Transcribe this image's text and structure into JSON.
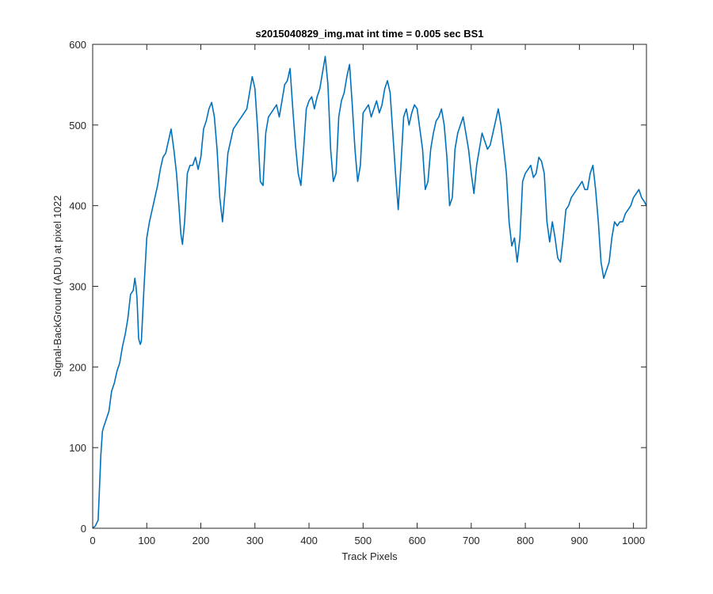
{
  "chart_data": {
    "type": "line",
    "title": "s2015040829_img.mat int time = 0.005 sec   BS1",
    "xlabel": "Track Pixels",
    "ylabel": "Signal-BackGround (ADU) at pixel 1022",
    "xlim": [
      0,
      1024
    ],
    "ylim": [
      0,
      600
    ],
    "xticks": [
      0,
      100,
      200,
      300,
      400,
      500,
      600,
      700,
      800,
      900,
      1000
    ],
    "yticks": [
      0,
      100,
      200,
      300,
      400,
      500,
      600
    ],
    "grid": false,
    "series_color": "#0072BD",
    "series": [
      {
        "x": [
          0,
          5,
          10,
          12,
          15,
          18,
          20,
          25,
          30,
          35,
          40,
          45,
          50,
          55,
          60,
          65,
          70,
          75,
          78,
          80,
          82,
          85,
          88,
          90,
          95,
          100,
          105,
          110,
          115,
          120,
          125,
          130,
          135,
          140,
          145,
          150,
          155,
          160,
          163,
          166,
          170,
          175,
          180,
          185,
          190,
          195,
          200,
          205,
          210,
          215,
          220,
          225,
          230,
          235,
          240,
          245,
          250,
          255,
          260,
          265,
          270,
          275,
          280,
          285,
          290,
          295,
          300,
          305,
          310,
          315,
          320,
          325,
          330,
          335,
          340,
          345,
          350,
          355,
          360,
          365,
          370,
          375,
          380,
          385,
          390,
          395,
          400,
          405,
          410,
          415,
          420,
          425,
          430,
          435,
          440,
          445,
          450,
          455,
          460,
          465,
          470,
          475,
          480,
          485,
          490,
          495,
          500,
          505,
          510,
          515,
          520,
          525,
          530,
          535,
          540,
          545,
          550,
          555,
          560,
          565,
          570,
          575,
          580,
          585,
          590,
          595,
          600,
          605,
          610,
          615,
          620,
          625,
          630,
          635,
          640,
          645,
          650,
          655,
          660,
          665,
          670,
          675,
          680,
          685,
          690,
          695,
          700,
          705,
          710,
          715,
          720,
          725,
          730,
          735,
          740,
          745,
          750,
          755,
          760,
          765,
          770,
          775,
          780,
          785,
          790,
          795,
          800,
          805,
          810,
          815,
          820,
          825,
          830,
          835,
          840,
          845,
          850,
          855,
          860,
          865,
          870,
          875,
          880,
          885,
          890,
          895,
          900,
          905,
          910,
          915,
          920,
          925,
          930,
          935,
          940,
          945,
          950,
          955,
          960,
          965,
          970,
          975,
          980,
          985,
          990,
          995,
          1000,
          1005,
          1010,
          1015,
          1020,
          1024
        ],
        "y": [
          0,
          3,
          10,
          40,
          90,
          120,
          125,
          135,
          145,
          170,
          180,
          195,
          205,
          225,
          240,
          260,
          290,
          295,
          310,
          300,
          285,
          235,
          228,
          232,
          300,
          360,
          380,
          395,
          410,
          425,
          445,
          460,
          465,
          480,
          495,
          470,
          440,
          395,
          365,
          352,
          380,
          440,
          450,
          450,
          460,
          445,
          460,
          495,
          505,
          520,
          528,
          510,
          470,
          410,
          380,
          420,
          465,
          480,
          495,
          500,
          505,
          510,
          515,
          520,
          540,
          560,
          545,
          495,
          430,
          425,
          490,
          510,
          515,
          520,
          525,
          510,
          530,
          550,
          555,
          570,
          520,
          475,
          440,
          425,
          470,
          520,
          530,
          535,
          520,
          535,
          545,
          565,
          585,
          550,
          470,
          430,
          440,
          510,
          530,
          540,
          560,
          575,
          525,
          470,
          430,
          450,
          515,
          520,
          525,
          510,
          520,
          530,
          515,
          525,
          545,
          555,
          540,
          490,
          440,
          395,
          450,
          510,
          520,
          500,
          515,
          525,
          520,
          495,
          470,
          420,
          430,
          470,
          490,
          505,
          510,
          520,
          500,
          460,
          400,
          410,
          470,
          490,
          500,
          510,
          490,
          470,
          440,
          415,
          450,
          470,
          490,
          480,
          470,
          475,
          490,
          505,
          520,
          500,
          470,
          440,
          380,
          350,
          360,
          330,
          360,
          430,
          440,
          445,
          450,
          435,
          440,
          460,
          455,
          440,
          380,
          355,
          380,
          360,
          335,
          330,
          360,
          395,
          400,
          410,
          415,
          420,
          425,
          430,
          420,
          420,
          440,
          450,
          420,
          380,
          330,
          310,
          320,
          330,
          360,
          380,
          375,
          380,
          380,
          390,
          395,
          400,
          410,
          415,
          420,
          410,
          405,
          400
        ]
      }
    ]
  }
}
